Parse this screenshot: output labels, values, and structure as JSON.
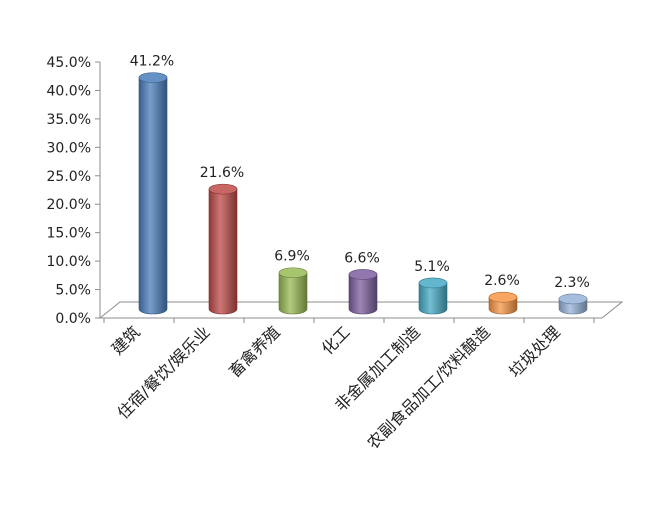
{
  "chart_data": {
    "type": "bar",
    "style": "3d-cylinder",
    "categories": [
      "建筑",
      "住宿/餐饮/娱乐业",
      "畜禽养殖",
      "化工",
      "非金属加工制造",
      "农副食品加工/饮料酿造",
      "垃圾处理"
    ],
    "values": [
      41.2,
      21.6,
      6.9,
      6.6,
      5.1,
      2.6,
      2.3
    ],
    "value_labels": [
      "41.2%",
      "21.6%",
      "6.9%",
      "6.6%",
      "5.1%",
      "2.6%",
      "2.3%"
    ],
    "colors": [
      "#4a7ebb",
      "#be4b48",
      "#98b954",
      "#7d5fa0",
      "#46aac5",
      "#f79646",
      "#95b3d7"
    ],
    "yticks": [
      "0.0%",
      "5.0%",
      "10.0%",
      "15.0%",
      "20.0%",
      "25.0%",
      "30.0%",
      "35.0%",
      "40.0%",
      "45.0%"
    ],
    "ylim": [
      0,
      45
    ],
    "ytick_step": 5,
    "title": "",
    "xlabel": "",
    "ylabel": "",
    "grid": false,
    "legend": "none"
  }
}
